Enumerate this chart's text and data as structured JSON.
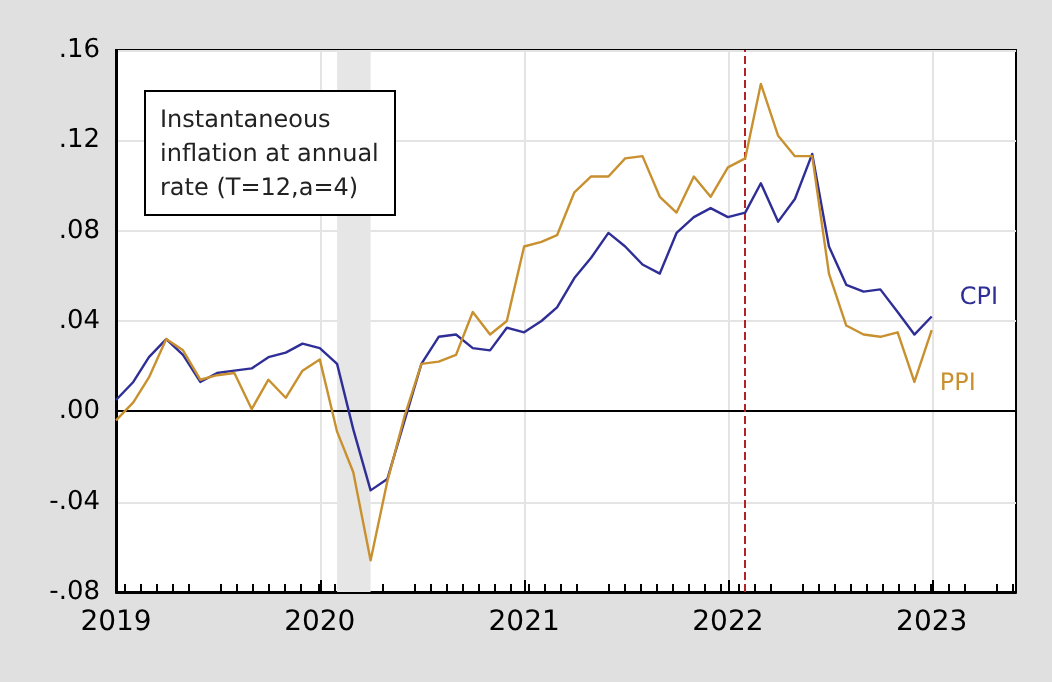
{
  "chart_data": {
    "type": "line",
    "x": [
      "2019-01",
      "2019-02",
      "2019-03",
      "2019-04",
      "2019-05",
      "2019-06",
      "2019-07",
      "2019-08",
      "2019-09",
      "2019-10",
      "2019-11",
      "2019-12",
      "2020-01",
      "2020-02",
      "2020-03",
      "2020-04",
      "2020-05",
      "2020-06",
      "2020-07",
      "2020-08",
      "2020-09",
      "2020-10",
      "2020-11",
      "2020-12",
      "2021-01",
      "2021-02",
      "2021-03",
      "2021-04",
      "2021-05",
      "2021-06",
      "2021-07",
      "2021-08",
      "2021-09",
      "2021-10",
      "2021-11",
      "2021-12",
      "2022-01",
      "2022-02",
      "2022-03",
      "2022-04",
      "2022-05",
      "2022-06",
      "2022-07",
      "2022-08",
      "2022-09",
      "2022-10",
      "2022-11",
      "2022-12",
      "2023-01"
    ],
    "series": [
      {
        "name": "CPI",
        "color": "#2e2e96",
        "values": [
          0.005,
          0.013,
          0.024,
          0.032,
          0.025,
          0.013,
          0.017,
          0.018,
          0.019,
          0.024,
          0.026,
          0.03,
          0.028,
          0.021,
          -0.008,
          -0.035,
          -0.03,
          -0.004,
          0.021,
          0.033,
          0.034,
          0.028,
          0.027,
          0.037,
          0.035,
          0.04,
          0.046,
          0.059,
          0.068,
          0.079,
          0.073,
          0.065,
          0.061,
          0.079,
          0.086,
          0.09,
          0.086,
          0.088,
          0.101,
          0.084,
          0.094,
          0.114,
          0.073,
          0.056,
          0.053,
          0.054,
          0.044,
          0.034,
          0.042
        ]
      },
      {
        "name": "PPI",
        "color": "#c8902e",
        "values": [
          -0.004,
          0.004,
          0.015,
          0.032,
          0.027,
          0.014,
          0.016,
          0.017,
          0.001,
          0.014,
          0.006,
          0.018,
          0.023,
          -0.009,
          -0.027,
          -0.066,
          -0.031,
          -0.002,
          0.021,
          0.022,
          0.025,
          0.044,
          0.034,
          0.04,
          0.073,
          0.075,
          0.078,
          0.097,
          0.104,
          0.104,
          0.112,
          0.113,
          0.095,
          0.088,
          0.104,
          0.095,
          0.108,
          0.112,
          0.145,
          0.122,
          0.113,
          0.113,
          0.061,
          0.038,
          0.034,
          0.033,
          0.035,
          0.013,
          0.036
        ]
      }
    ],
    "xlim": [
      "2019-01",
      "2023-06"
    ],
    "xticks": [
      {
        "value": "2019-01",
        "label": "2019"
      },
      {
        "value": "2020-01",
        "label": "2020"
      },
      {
        "value": "2021-01",
        "label": "2021"
      },
      {
        "value": "2022-01",
        "label": "2022"
      },
      {
        "value": "2023-01",
        "label": "2023"
      }
    ],
    "ylim": [
      -0.08,
      0.16
    ],
    "yticks": [
      {
        "value": -0.08,
        "label": "-.08"
      },
      {
        "value": -0.04,
        "label": "-.04"
      },
      {
        "value": 0,
        "label": ".00"
      },
      {
        "value": 0.04,
        "label": ".04"
      },
      {
        "value": 0.08,
        "label": ".08"
      },
      {
        "value": 0.12,
        "label": ".12"
      },
      {
        "value": 0.16,
        "label": ".16"
      }
    ],
    "ref_lines": [
      {
        "axis": "y",
        "value": 0,
        "color": "#000000",
        "line_style": "solid"
      },
      {
        "axis": "x",
        "value": "2022-02",
        "color": "#b22222",
        "line_style": "dashed"
      }
    ],
    "bands": [
      {
        "axis": "x",
        "from": "2020-02",
        "to": "2020-04",
        "color": "#e6e6e6"
      }
    ],
    "annotations": [
      "Instantaneous\ninflation at annual\nrate (T=12,a=4)"
    ],
    "grid": true,
    "marker": "none",
    "line_style": "solid"
  }
}
